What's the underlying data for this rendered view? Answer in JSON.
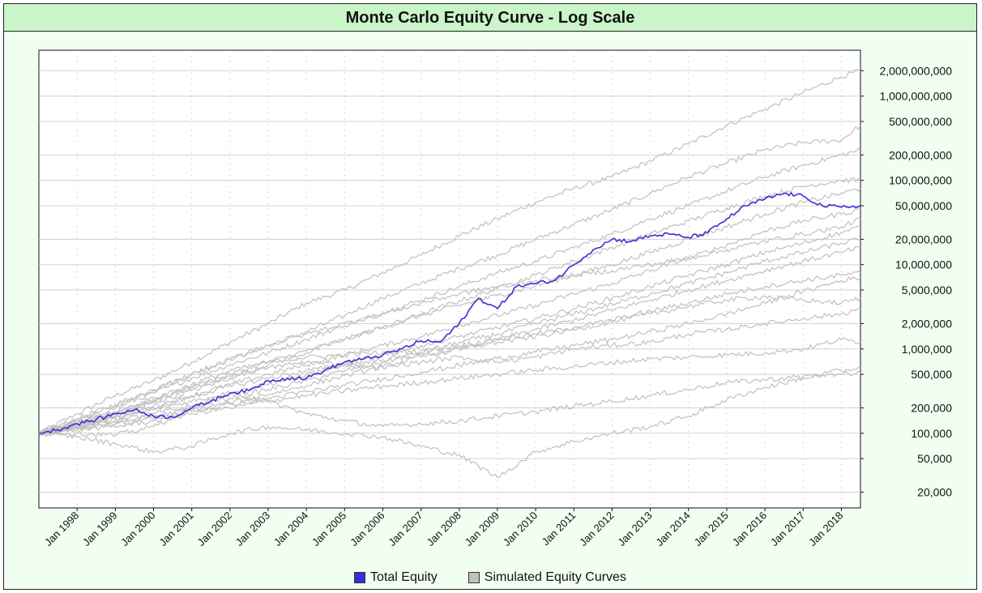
{
  "colors": {
    "title_background": "#c9f5c9",
    "panel_background": "#f0fff0",
    "total_equity": "#3a2fd6",
    "simulated": "#c0c0c0",
    "gridline": "#d0d0d0"
  },
  "chart_data": {
    "type": "line",
    "title": "Monte Carlo Equity Curve - Log Scale",
    "y_scale": "log",
    "ylim": [
      13000,
      3500000000
    ],
    "xlim": [
      "1997-01",
      "2018-07"
    ],
    "y_axis_position": "right",
    "y_ticks": [
      20000,
      50000,
      100000,
      200000,
      500000,
      1000000,
      2000000,
      5000000,
      10000000,
      20000000,
      50000000,
      100000000,
      200000000,
      500000000,
      1000000000,
      2000000000
    ],
    "y_tick_labels": [
      "20,000",
      "50,000",
      "100,000",
      "200,000",
      "500,000",
      "1,000,000",
      "2,000,000",
      "5,000,000",
      "10,000,000",
      "20,000,000",
      "50,000,000",
      "100,000,000",
      "200,000,000",
      "500,000,000",
      "1,000,000,000",
      "2,000,000,000"
    ],
    "x_ticks": [
      "1998-01",
      "1999-01",
      "2000-01",
      "2001-01",
      "2002-01",
      "2003-01",
      "2004-01",
      "2005-01",
      "2006-01",
      "2007-01",
      "2008-01",
      "2009-01",
      "2010-01",
      "2011-01",
      "2012-01",
      "2013-01",
      "2014-01",
      "2015-01",
      "2016-01",
      "2017-01",
      "2018-01"
    ],
    "x_tick_labels": [
      "Jan 1998",
      "Jan 1999",
      "Jan 2000",
      "Jan 2001",
      "Jan 2002",
      "Jan 2003",
      "Jan 2004",
      "Jan 2005",
      "Jan 2006",
      "Jan 2007",
      "Jan 2008",
      "Jan 2009",
      "Jan 2010",
      "Jan 2011",
      "Jan 2012",
      "Jan 2013",
      "Jan 2014",
      "Jan 2015",
      "Jan 2016",
      "Jan 2017",
      "Jan 2018"
    ],
    "grid": true,
    "legend_position": "bottom",
    "legend": [
      "Total Equity",
      "Simulated Equity Curves"
    ],
    "series": [
      {
        "name": "Total Equity",
        "x": [
          "1997-01",
          "1997-07",
          "1998-01",
          "1998-07",
          "1999-01",
          "1999-07",
          "2000-01",
          "2000-07",
          "2001-01",
          "2001-07",
          "2002-01",
          "2002-07",
          "2003-01",
          "2003-07",
          "2004-01",
          "2004-07",
          "2005-01",
          "2005-07",
          "2006-01",
          "2006-07",
          "2007-01",
          "2007-07",
          "2008-01",
          "2008-07",
          "2009-01",
          "2009-07",
          "2010-01",
          "2010-07",
          "2011-01",
          "2011-07",
          "2012-01",
          "2012-07",
          "2013-01",
          "2013-07",
          "2014-01",
          "2014-07",
          "2015-01",
          "2015-07",
          "2016-01",
          "2016-07",
          "2017-01",
          "2017-07",
          "2018-01",
          "2018-07"
        ],
        "values": [
          100000,
          110000,
          130000,
          145000,
          170000,
          190000,
          160000,
          155000,
          200000,
          240000,
          300000,
          320000,
          420000,
          450000,
          450000,
          560000,
          700000,
          760000,
          850000,
          1000000,
          1250000,
          1200000,
          2000000,
          4000000,
          3000000,
          5500000,
          6000000,
          6500000,
          10000000,
          15000000,
          20000000,
          19000000,
          22000000,
          23000000,
          21000000,
          24000000,
          35000000,
          50000000,
          60000000,
          70000000,
          65000000,
          50000000,
          48000000,
          50000000
        ]
      },
      {
        "name": "Simulated Equity Curves",
        "x": [
          "1997-01",
          "1998-01",
          "1999-01",
          "2000-01",
          "2001-01",
          "2002-01",
          "2003-01",
          "2004-01",
          "2005-01",
          "2006-01",
          "2007-01",
          "2008-01",
          "2009-01",
          "2010-01",
          "2011-01",
          "2012-01",
          "2013-01",
          "2014-01",
          "2015-01",
          "2016-01",
          "2017-01",
          "2018-01",
          "2018-07"
        ],
        "values": [
          [
            100000,
            170000,
            280000,
            420000,
            700000,
            1200000,
            2000000,
            3500000,
            5000000,
            8000000,
            13000000,
            22000000,
            35000000,
            55000000,
            80000000,
            110000000,
            170000000,
            270000000,
            450000000,
            700000000,
            1100000000,
            1700000000,
            2000000000
          ],
          [
            100000,
            150000,
            220000,
            330000,
            500000,
            750000,
            1100000,
            1600000,
            2500000,
            4000000,
            6000000,
            9000000,
            13000000,
            20000000,
            30000000,
            45000000,
            70000000,
            110000000,
            160000000,
            230000000,
            280000000,
            300000000,
            450000000
          ],
          [
            100000,
            140000,
            200000,
            300000,
            450000,
            650000,
            900000,
            1300000,
            1900000,
            2700000,
            3800000,
            5500000,
            8000000,
            11000000,
            16000000,
            23000000,
            35000000,
            50000000,
            75000000,
            110000000,
            150000000,
            200000000,
            230000000
          ],
          [
            100000,
            130000,
            170000,
            230000,
            320000,
            450000,
            650000,
            900000,
            1300000,
            1800000,
            2600000,
            3700000,
            5200000,
            7500000,
            11000000,
            16000000,
            23000000,
            33000000,
            47000000,
            65000000,
            85000000,
            100000000,
            100000000
          ],
          [
            100000,
            130000,
            180000,
            250000,
            350000,
            500000,
            700000,
            950000,
            1300000,
            1800000,
            2500000,
            3300000,
            4300000,
            5600000,
            7500000,
            10000000,
            14000000,
            20000000,
            28000000,
            40000000,
            55000000,
            70000000,
            80000000
          ],
          [
            100000,
            125000,
            160000,
            210000,
            280000,
            380000,
            500000,
            650000,
            850000,
            1100000,
            1400000,
            1900000,
            2500000,
            3300000,
            4500000,
            6000000,
            8500000,
            12000000,
            17000000,
            25000000,
            33000000,
            40000000,
            45000000
          ],
          [
            100000,
            120000,
            150000,
            190000,
            240000,
            300000,
            380000,
            500000,
            650000,
            850000,
            1100000,
            1400000,
            1800000,
            2300000,
            3000000,
            4000000,
            5500000,
            7500000,
            10000000,
            14000000,
            18000000,
            24000000,
            28000000
          ],
          [
            100000,
            120000,
            140000,
            170000,
            210000,
            260000,
            330000,
            420000,
            550000,
            700000,
            900000,
            1200000,
            1500000,
            2000000,
            2600000,
            3400000,
            4500000,
            6000000,
            8000000,
            11000000,
            14000000,
            18000000,
            20000000
          ],
          [
            100000,
            115000,
            135000,
            160000,
            190000,
            230000,
            290000,
            370000,
            480000,
            620000,
            800000,
            1000000,
            1300000,
            1700000,
            2200000,
            2900000,
            3800000,
            5000000,
            6500000,
            8500000,
            11000000,
            14000000,
            16000000
          ],
          [
            100000,
            130000,
            180000,
            260000,
            380000,
            550000,
            700000,
            800000,
            850000,
            900000,
            950000,
            1100000,
            1300000,
            1500000,
            1800000,
            2200000,
            2800000,
            3500000,
            4500000,
            5500000,
            6500000,
            7500000,
            8000000
          ],
          [
            100000,
            120000,
            150000,
            200000,
            270000,
            360000,
            450000,
            550000,
            650000,
            750000,
            850000,
            1000000,
            1200000,
            1400000,
            1700000,
            2100000,
            2600000,
            3200000,
            3800000,
            4200000,
            3800000,
            3500000,
            4000000
          ],
          [
            100000,
            110000,
            120000,
            140000,
            170000,
            200000,
            240000,
            280000,
            320000,
            360000,
            400000,
            450000,
            500000,
            560000,
            620000,
            690000,
            760000,
            800000,
            850000,
            900000,
            1000000,
            1300000,
            1200000
          ],
          [
            100000,
            100000,
            95000,
            120000,
            200000,
            300000,
            240000,
            170000,
            140000,
            120000,
            130000,
            140000,
            160000,
            180000,
            210000,
            240000,
            280000,
            330000,
            400000,
            430000,
            470000,
            550000,
            600000
          ],
          [
            100000,
            90000,
            75000,
            60000,
            70000,
            100000,
            120000,
            110000,
            100000,
            90000,
            70000,
            55000,
            30000,
            60000,
            80000,
            100000,
            120000,
            160000,
            250000,
            350000,
            450000,
            500000,
            520000
          ],
          [
            100000,
            120000,
            160000,
            240000,
            350000,
            480000,
            600000,
            700000,
            650000,
            600000,
            700000,
            800000,
            700000,
            800000,
            1000000,
            1100000,
            1200000,
            1500000,
            1700000,
            2000000,
            2300000,
            2600000,
            3000000
          ],
          [
            100000,
            140000,
            210000,
            320000,
            500000,
            750000,
            1100000,
            1500000,
            2000000,
            2600000,
            3500000,
            4500000,
            5500000,
            6500000,
            7500000,
            8500000,
            10000000,
            12000000,
            15000000,
            19000000,
            23000000,
            28000000,
            35000000
          ],
          [
            100000,
            115000,
            130000,
            150000,
            180000,
            220000,
            260000,
            310000,
            370000,
            440000,
            530000,
            640000,
            770000,
            920000,
            1100000,
            1300000,
            1600000,
            2000000,
            2600000,
            3500000,
            4800000,
            6500000,
            7000000
          ]
        ]
      }
    ]
  }
}
